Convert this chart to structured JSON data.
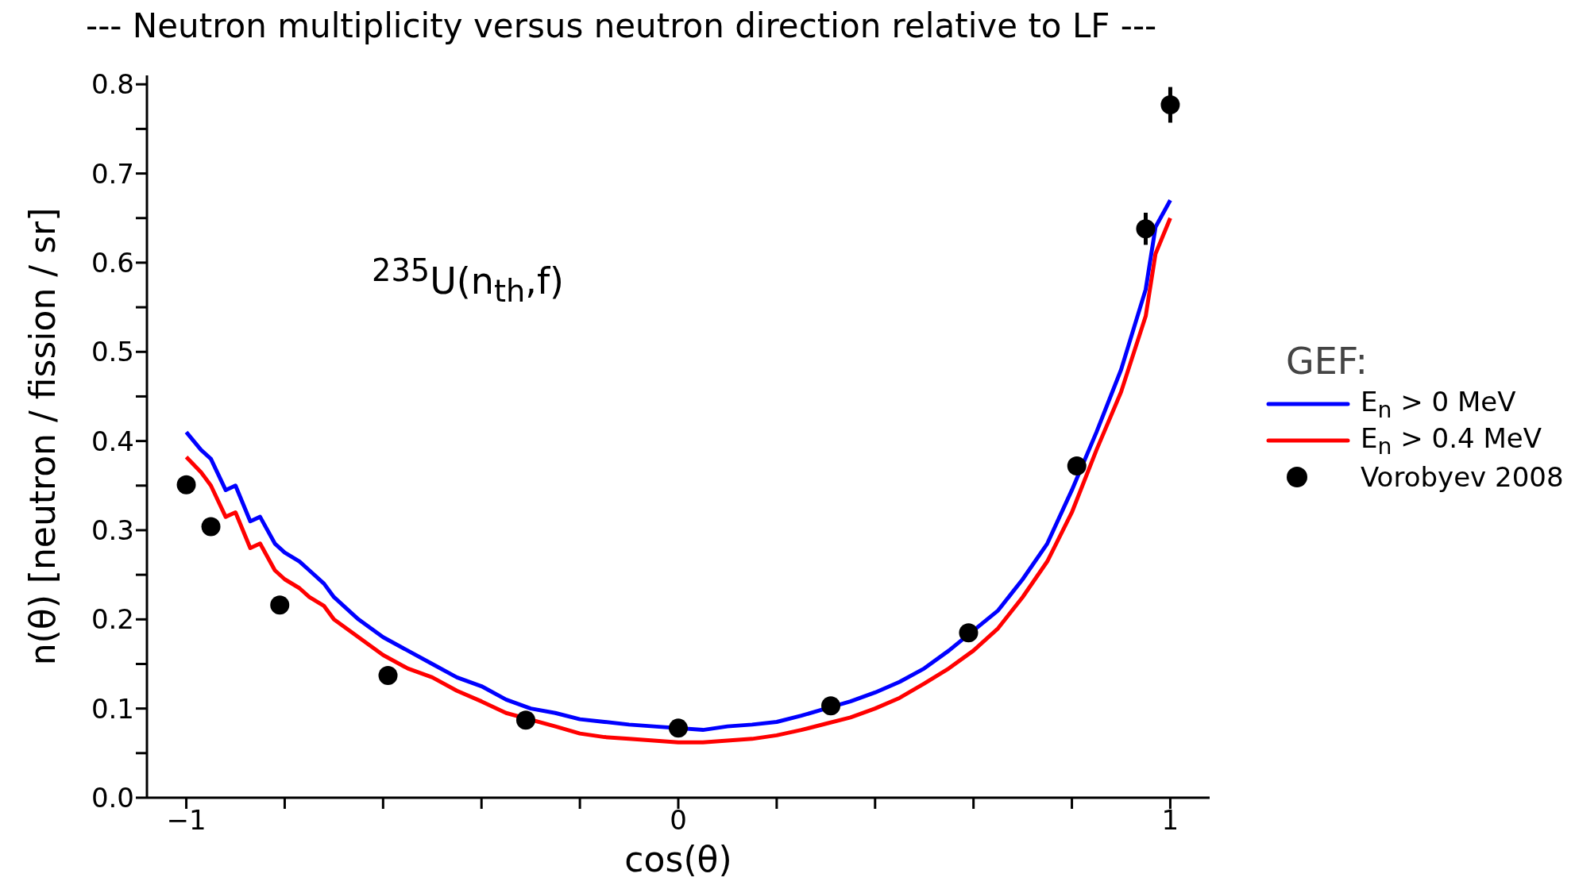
{
  "chart_data": {
    "type": "line",
    "title": "--- Neutron multiplicity versus neutron direction relative to LF ---",
    "xlabel": "cos(θ)",
    "ylabel": "n(θ) [neutron / fission / sr]",
    "legend_title": "GEF:",
    "legend": "right",
    "annotations": [
      "$^{235}$U(n$_{th}$,f)"
    ],
    "xlim": [
      -1.08,
      1.08
    ],
    "ylim": [
      0,
      0.81
    ],
    "xticks": [
      {
        "value": -1,
        "label": "−1"
      },
      {
        "value": -0.8,
        "label": null
      },
      {
        "value": -0.6,
        "label": null
      },
      {
        "value": -0.4,
        "label": null
      },
      {
        "value": -0.2,
        "label": null
      },
      0,
      {
        "value": 0.2,
        "label": null
      },
      {
        "value": 0.4,
        "label": null
      },
      {
        "value": 0.6,
        "label": null
      },
      {
        "value": 0.8,
        "label": null
      },
      1
    ],
    "yticks": [
      {
        "value": 0,
        "label": "0.0"
      },
      {
        "value": 0.05,
        "label": null
      },
      0.1,
      {
        "value": 0.15,
        "label": null
      },
      0.2,
      {
        "value": 0.25,
        "label": null
      },
      0.3,
      {
        "value": 0.35,
        "label": null
      },
      0.4,
      {
        "value": 0.45,
        "label": null
      },
      0.5,
      {
        "value": 0.55,
        "label": null
      },
      0.6,
      {
        "value": 0.65,
        "label": null
      },
      0.7,
      {
        "value": 0.75,
        "label": null
      },
      0.8
    ],
    "grid": false,
    "line_style": "solid",
    "marker": "none",
    "series": [
      {
        "name": "E$_{n}$ > 0 MeV",
        "color": "#0000ff",
        "x": [
          -1,
          -0.97,
          -0.95,
          -0.92,
          -0.9,
          -0.87,
          -0.85,
          -0.82,
          -0.8,
          -0.77,
          -0.75,
          -0.72,
          -0.7,
          -0.65,
          -0.6,
          -0.55,
          -0.5,
          -0.45,
          -0.4,
          -0.35,
          -0.3,
          -0.25,
          -0.2,
          -0.15,
          -0.1,
          -0.05,
          0.05,
          0.1,
          0.15,
          0.2,
          0.25,
          0.3,
          0.35,
          0.4,
          0.45,
          0.5,
          0.55,
          0.65,
          0.7,
          0.75,
          0.8,
          0.85,
          0.9,
          0.95,
          0.97,
          1
        ],
        "values": [
          0.41,
          0.39,
          0.38,
          0.345,
          0.35,
          0.31,
          0.315,
          0.285,
          0.275,
          0.265,
          0.255,
          0.24,
          0.225,
          0.2,
          0.18,
          0.165,
          0.15,
          0.135,
          0.125,
          0.11,
          0.1,
          0.095,
          0.088,
          0.085,
          0.082,
          0.08,
          0.076,
          0.08,
          0.082,
          0.085,
          0.092,
          0.1,
          0.108,
          0.118,
          0.13,
          0.145,
          0.165,
          0.21,
          0.245,
          0.285,
          0.345,
          0.41,
          0.48,
          0.57,
          0.64,
          0.67
        ]
      },
      {
        "name": "E$_{n}$ > 0.4 MeV",
        "color": "#ff0000",
        "x": [
          -1,
          -0.97,
          -0.95,
          -0.92,
          -0.9,
          -0.87,
          -0.85,
          -0.82,
          -0.8,
          -0.77,
          -0.75,
          -0.72,
          -0.7,
          -0.65,
          -0.6,
          -0.55,
          -0.5,
          -0.45,
          -0.4,
          -0.35,
          -0.25,
          -0.2,
          -0.15,
          -0.1,
          -0.05,
          0,
          0.05,
          0.1,
          0.15,
          0.2,
          0.25,
          0.3,
          0.35,
          0.4,
          0.45,
          0.5,
          0.55,
          0.6,
          0.65,
          0.7,
          0.75,
          0.8,
          0.85,
          0.9,
          0.95,
          0.97,
          1
        ],
        "values": [
          0.382,
          0.365,
          0.35,
          0.315,
          0.32,
          0.28,
          0.285,
          0.255,
          0.245,
          0.235,
          0.225,
          0.215,
          0.2,
          0.18,
          0.16,
          0.145,
          0.135,
          0.12,
          0.108,
          0.095,
          0.08,
          0.072,
          0.068,
          0.066,
          0.064,
          0.062,
          0.062,
          0.064,
          0.066,
          0.07,
          0.076,
          0.083,
          0.09,
          0.1,
          0.112,
          0.128,
          0.145,
          0.165,
          0.19,
          0.225,
          0.265,
          0.32,
          0.39,
          0.455,
          0.54,
          0.61,
          0.65
        ]
      },
      {
        "name": "Vorobyev 2008",
        "type": "scatter",
        "color": "#000000",
        "marker": "circle",
        "x": [
          -1,
          -0.95,
          -0.81,
          -0.59,
          -0.31,
          0,
          0.31,
          0.59,
          0.81,
          0.95,
          1
        ],
        "values": [
          0.351,
          0.304,
          0.216,
          0.137,
          0.087,
          0.078,
          0.103,
          0.185,
          0.372,
          0.638,
          0.777
        ],
        "errors": [
          0.01,
          null,
          null,
          null,
          null,
          null,
          null,
          null,
          0.01,
          0.018,
          0.02
        ]
      }
    ]
  }
}
